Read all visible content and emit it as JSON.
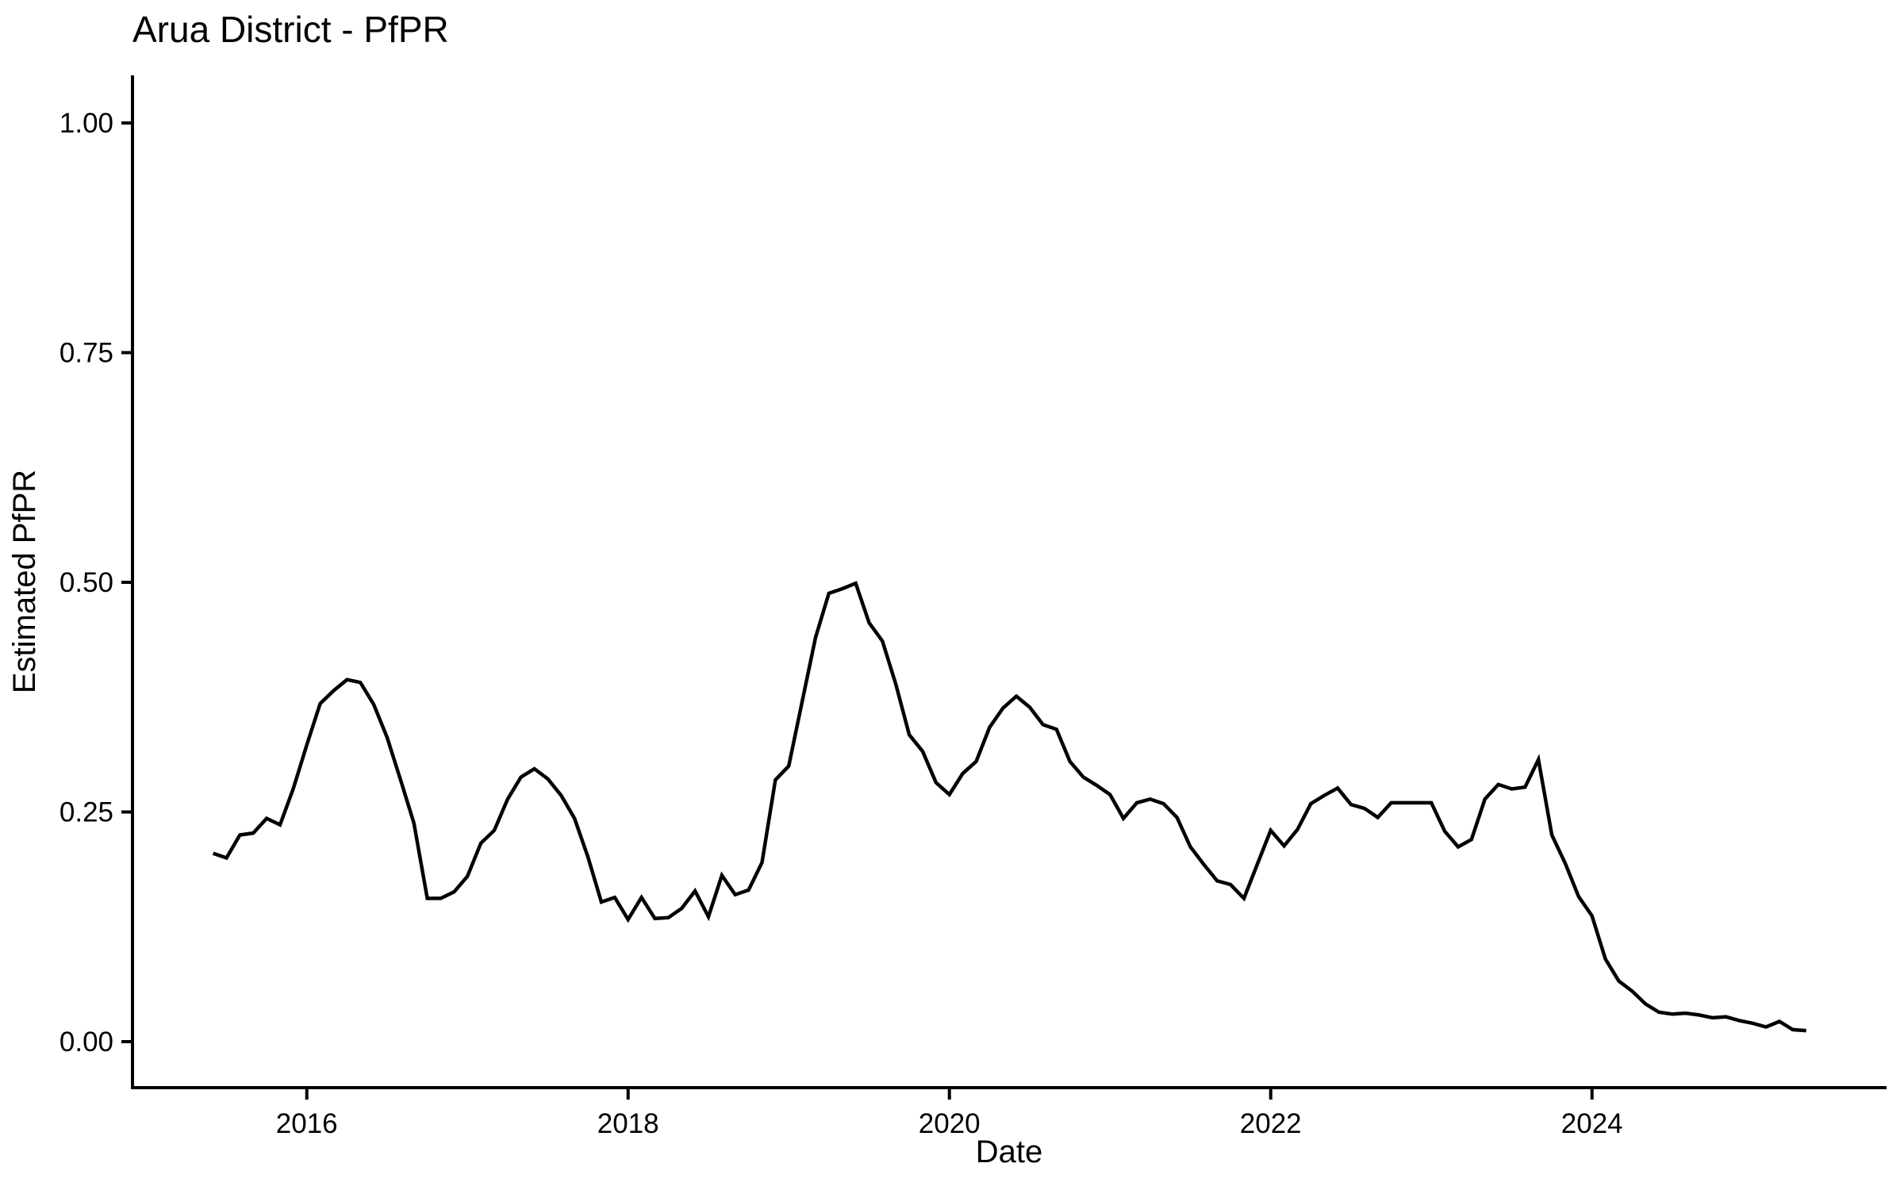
{
  "chart_data": {
    "type": "line",
    "title": "Arua District - PfPR",
    "xlabel": "Date",
    "ylabel": "Estimated PfPR",
    "legend": "none",
    "grid": false,
    "background": "#ffffff",
    "colors": {
      "line": "#000000",
      "axis": "#000000",
      "text": "#000000"
    },
    "ylim": [
      0.0,
      1.0
    ],
    "y_ticks": [
      {
        "label": "1.00",
        "value": 1.0
      },
      {
        "label": "0.75",
        "value": 0.75
      },
      {
        "label": "0.50",
        "value": 0.5
      },
      {
        "label": "0.25",
        "value": 0.25
      },
      {
        "label": "0.00",
        "value": 0.0
      }
    ],
    "x_ticks": [
      {
        "label": "2016",
        "month_index": 7
      },
      {
        "label": "2018",
        "month_index": 31
      },
      {
        "label": "2020",
        "month_index": 55
      },
      {
        "label": "2022",
        "month_index": 79
      },
      {
        "label": "2024",
        "month_index": 103
      }
    ],
    "series_name": "Estimated PfPR",
    "x": [
      "2015-06",
      "2015-07",
      "2015-08",
      "2015-09",
      "2015-10",
      "2015-11",
      "2015-12",
      "2016-01",
      "2016-02",
      "2016-03",
      "2016-04",
      "2016-05",
      "2016-06",
      "2016-07",
      "2016-08",
      "2016-09",
      "2016-10",
      "2016-11",
      "2016-12",
      "2017-01",
      "2017-02",
      "2017-03",
      "2017-04",
      "2017-05",
      "2017-06",
      "2017-07",
      "2017-08",
      "2017-09",
      "2017-10",
      "2017-11",
      "2017-12",
      "2018-01",
      "2018-02",
      "2018-03",
      "2018-04",
      "2018-05",
      "2018-06",
      "2018-07",
      "2018-08",
      "2018-09",
      "2018-10",
      "2018-11",
      "2018-12",
      "2019-01",
      "2019-02",
      "2019-03",
      "2019-04",
      "2019-05",
      "2019-06",
      "2019-07",
      "2019-08",
      "2019-09",
      "2019-10",
      "2019-11",
      "2019-12",
      "2020-01",
      "2020-02",
      "2020-03",
      "2020-04",
      "2020-05",
      "2020-06",
      "2020-07",
      "2020-08",
      "2020-09",
      "2020-10",
      "2020-11",
      "2020-12",
      "2021-01",
      "2021-02",
      "2021-03",
      "2021-04",
      "2021-05",
      "2021-06",
      "2021-07",
      "2021-08",
      "2021-09",
      "2021-10",
      "2021-11",
      "2021-12",
      "2022-01",
      "2022-02",
      "2022-03",
      "2022-04",
      "2022-05",
      "2022-06",
      "2022-07",
      "2022-08",
      "2022-09",
      "2022-10",
      "2022-11",
      "2022-12",
      "2023-01",
      "2023-02",
      "2023-03",
      "2023-04",
      "2023-05",
      "2023-06",
      "2023-07",
      "2023-08",
      "2023-09",
      "2023-10",
      "2023-11",
      "2023-12",
      "2024-01",
      "2024-02",
      "2024-03",
      "2024-04",
      "2024-05",
      "2024-06",
      "2024-07",
      "2024-08",
      "2024-09",
      "2024-10",
      "2024-11",
      "2024-12",
      "2025-01",
      "2025-02",
      "2025-03",
      "2025-04",
      "2025-05"
    ],
    "values": [
      0.205,
      0.2,
      0.225,
      0.227,
      0.243,
      0.236,
      0.276,
      0.323,
      0.368,
      0.382,
      0.394,
      0.391,
      0.367,
      0.331,
      0.285,
      0.238,
      0.156,
      0.156,
      0.163,
      0.18,
      0.216,
      0.23,
      0.264,
      0.288,
      0.297,
      0.286,
      0.268,
      0.243,
      0.201,
      0.152,
      0.157,
      0.133,
      0.157,
      0.134,
      0.135,
      0.145,
      0.164,
      0.136,
      0.181,
      0.16,
      0.165,
      0.195,
      0.285,
      0.3,
      0.37,
      0.44,
      0.488,
      0.493,
      0.499,
      0.456,
      0.436,
      0.389,
      0.334,
      0.316,
      0.282,
      0.269,
      0.292,
      0.305,
      0.342,
      0.363,
      0.376,
      0.364,
      0.345,
      0.34,
      0.305,
      0.288,
      0.279,
      0.269,
      0.243,
      0.26,
      0.264,
      0.259,
      0.244,
      0.212,
      0.193,
      0.175,
      0.171,
      0.156,
      0.193,
      0.23,
      0.213,
      0.231,
      0.259,
      0.268,
      0.276,
      0.258,
      0.254,
      0.244,
      0.26,
      0.26,
      0.26,
      0.26,
      0.229,
      0.212,
      0.22,
      0.264,
      0.28,
      0.275,
      0.277,
      0.307,
      0.225,
      0.194,
      0.158,
      0.137,
      0.09,
      0.066,
      0.055,
      0.041,
      0.032,
      0.03,
      0.031,
      0.029,
      0.026,
      0.027,
      0.023,
      0.02,
      0.016,
      0.022,
      0.013,
      0.012
    ]
  }
}
